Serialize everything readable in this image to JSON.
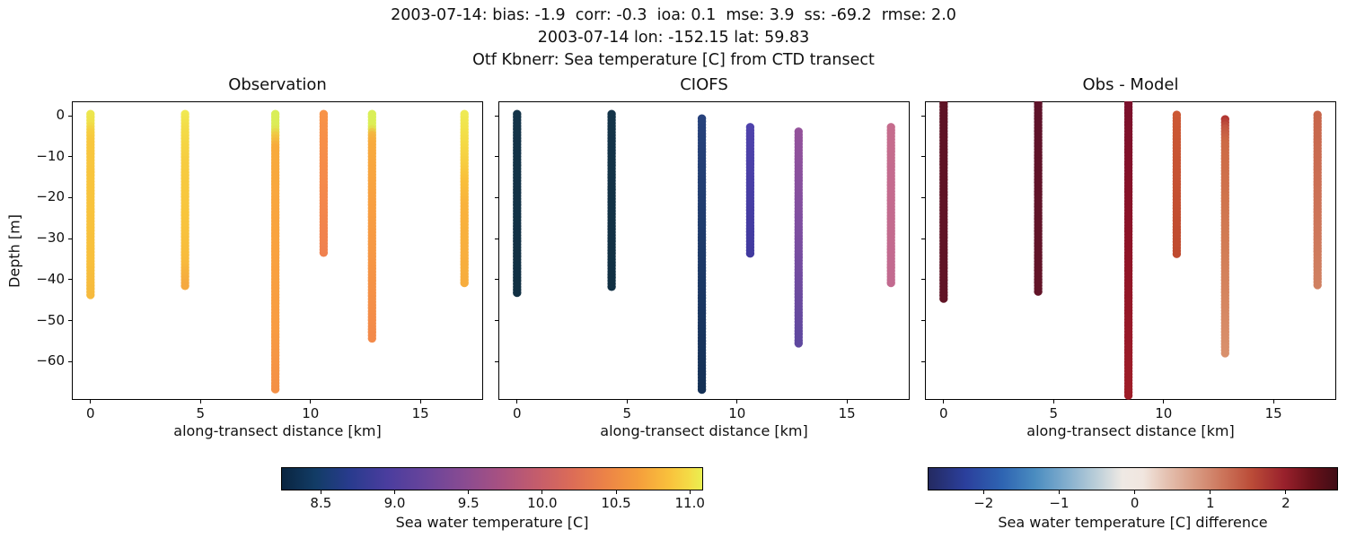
{
  "header": {
    "line1": "2003-07-14: bias: -1.9  corr: -0.3  ioa: 0.1  mse: 3.9  ss: -69.2  rmse: 2.0",
    "line2": "2003-07-14 lon: -152.15 lat: 59.83",
    "line3": "Otf Kbnerr: Sea temperature [C] from CTD transect"
  },
  "chart_data": {
    "type": "scatter",
    "description": "Three vertical-profile scatter panels (CTD transect casts) sharing depth axis, plus two horizontal colorbars",
    "axes": {
      "xlabel": "along-transect distance [km]",
      "ylabel": "Depth [m]",
      "xlim": [
        -0.85,
        17.85
      ],
      "ylim": [
        3.5,
        -69.3
      ],
      "xticks": [
        {
          "v": 0,
          "label": "0"
        },
        {
          "v": 5,
          "label": "5"
        },
        {
          "v": 10,
          "label": "10"
        },
        {
          "v": 15,
          "label": "15"
        }
      ],
      "yticks": [
        {
          "v": 0,
          "label": "0"
        },
        {
          "v": -10,
          "label": "−10"
        },
        {
          "v": -20,
          "label": "−20"
        },
        {
          "v": -30,
          "label": "−30"
        },
        {
          "v": -40,
          "label": "−40"
        },
        {
          "v": -50,
          "label": "−50"
        },
        {
          "v": -60,
          "label": "−60"
        }
      ]
    },
    "panels": [
      {
        "title": "Observation",
        "show_ytick_labels": true,
        "columns": [
          {
            "x_km": 0.0,
            "depth_top_m": 0.4,
            "depth_bottom_m": -43.7,
            "approx_value_range": [
              11.0,
              10.3
            ],
            "color_stops": [
              [
                0,
                "#ece74f"
              ],
              [
                0.05,
                "#f0e14b"
              ],
              [
                0.1,
                "#f6cf41"
              ],
              [
                0.16,
                "#f8c73e"
              ],
              [
                0.8,
                "#f8c03c"
              ],
              [
                1,
                "#f6ba3d"
              ]
            ]
          },
          {
            "x_km": 4.3,
            "depth_top_m": 0.4,
            "depth_bottom_m": -41.5,
            "approx_value_range": [
              11.0,
              10.0
            ],
            "color_stops": [
              [
                0,
                "#f0e952"
              ],
              [
                0.08,
                "#f3dd48"
              ],
              [
                0.3,
                "#f7cc3f"
              ],
              [
                0.6,
                "#f8c53d"
              ],
              [
                0.85,
                "#f8bc3c"
              ],
              [
                1,
                "#f5a940"
              ]
            ]
          },
          {
            "x_km": 8.4,
            "depth_top_m": 0.4,
            "depth_bottom_m": -66.7,
            "approx_value_range": [
              11.1,
              9.9
            ],
            "color_stops": [
              [
                0,
                "#d9ee59"
              ],
              [
                0.05,
                "#dcec56"
              ],
              [
                0.08,
                "#f0c845"
              ],
              [
                0.12,
                "#f8ab3c"
              ],
              [
                0.4,
                "#f9a43f"
              ],
              [
                0.78,
                "#f89c42"
              ],
              [
                1,
                "#f49046"
              ]
            ]
          },
          {
            "x_km": 10.6,
            "depth_top_m": 0.4,
            "depth_bottom_m": -33.4,
            "approx_value_range": [
              9.9,
              9.7
            ],
            "color_stops": [
              [
                0,
                "#f89348"
              ],
              [
                0.5,
                "#f58a4b"
              ],
              [
                1,
                "#f0814f"
              ]
            ]
          },
          {
            "x_km": 12.8,
            "depth_top_m": 0.4,
            "depth_bottom_m": -54.3,
            "approx_value_range": [
              11.1,
              9.8
            ],
            "color_stops": [
              [
                0,
                "#d9ef57"
              ],
              [
                0.06,
                "#dcee55"
              ],
              [
                0.09,
                "#f3b841"
              ],
              [
                0.13,
                "#f8ab3e"
              ],
              [
                0.4,
                "#f8a041"
              ],
              [
                1,
                "#f38a4a"
              ]
            ]
          },
          {
            "x_km": 17.0,
            "depth_top_m": 0.4,
            "depth_bottom_m": -40.8,
            "approx_value_range": [
              11.0,
              10.0
            ],
            "color_stops": [
              [
                0,
                "#eeea55"
              ],
              [
                0.1,
                "#f2e24a"
              ],
              [
                0.25,
                "#f6d343"
              ],
              [
                0.4,
                "#f9c03b"
              ],
              [
                0.55,
                "#f9b23d"
              ],
              [
                1,
                "#f7ad3e"
              ]
            ]
          }
        ]
      },
      {
        "title": "CIOFS",
        "show_ytick_labels": false,
        "columns": [
          {
            "x_km": 0.0,
            "depth_top_m": 0.4,
            "depth_bottom_m": -43.2,
            "approx_value_range": [
              8.35,
              8.35
            ],
            "color_stops": [
              [
                0,
                "#143449"
              ],
              [
                1,
                "#113043"
              ]
            ]
          },
          {
            "x_km": 4.3,
            "depth_top_m": 0.4,
            "depth_bottom_m": -41.7,
            "approx_value_range": [
              8.35,
              8.35
            ],
            "color_stops": [
              [
                0,
                "#143449"
              ],
              [
                1,
                "#113043"
              ]
            ]
          },
          {
            "x_km": 8.4,
            "depth_top_m": -0.7,
            "depth_bottom_m": -66.8,
            "approx_value_range": [
              8.65,
              8.45
            ],
            "color_stops": [
              [
                0,
                "#27427c"
              ],
              [
                0.5,
                "#1d3a69"
              ],
              [
                1,
                "#153156"
              ]
            ]
          },
          {
            "x_km": 10.6,
            "depth_top_m": -2.8,
            "depth_bottom_m": -33.6,
            "approx_value_range": [
              8.95,
              8.85
            ],
            "color_stops": [
              [
                0,
                "#4f43ac"
              ],
              [
                1,
                "#413a9f"
              ]
            ]
          },
          {
            "x_km": 12.8,
            "depth_top_m": -3.9,
            "depth_bottom_m": -55.5,
            "approx_value_range": [
              9.4,
              9.05
            ],
            "color_stops": [
              [
                0,
                "#94529b"
              ],
              [
                0.45,
                "#7e4ea0"
              ],
              [
                1,
                "#5f489f"
              ]
            ]
          },
          {
            "x_km": 17.0,
            "depth_top_m": -2.8,
            "depth_bottom_m": -40.8,
            "approx_value_range": [
              9.85,
              9.85
            ],
            "color_stops": [
              [
                0,
                "#c56c8d"
              ],
              [
                1,
                "#c26a8f"
              ]
            ]
          }
        ]
      },
      {
        "title": "Obs - Model",
        "show_ytick_labels": false,
        "columns": [
          {
            "x_km": 0.0,
            "depth_top_m": 2.9,
            "depth_bottom_m": -44.6,
            "approx_value_range": [
              2.6,
              2.6
            ],
            "color_stops": [
              [
                0,
                "#5e1325"
              ],
              [
                1,
                "#611426"
              ]
            ]
          },
          {
            "x_km": 4.3,
            "depth_top_m": 2.9,
            "depth_bottom_m": -42.9,
            "approx_value_range": [
              2.55,
              2.55
            ],
            "color_stops": [
              [
                0,
                "#5e132a"
              ],
              [
                1,
                "#621428"
              ]
            ]
          },
          {
            "x_km": 8.4,
            "depth_top_m": 3.6,
            "depth_bottom_m": -68.2,
            "approx_value_range": [
              2.35,
              2.1
            ],
            "color_stops": [
              [
                0,
                "#7a102c"
              ],
              [
                0.5,
                "#8e1327"
              ],
              [
                1,
                "#9e1d28"
              ]
            ]
          },
          {
            "x_km": 10.6,
            "depth_top_m": 0.2,
            "depth_bottom_m": -33.7,
            "approx_value_range": [
              1.4,
              1.55
            ],
            "color_stops": [
              [
                0,
                "#cc5834"
              ],
              [
                1,
                "#bf4a2f"
              ]
            ]
          },
          {
            "x_km": 12.8,
            "depth_top_m": -0.9,
            "depth_bottom_m": -57.9,
            "approx_value_range": [
              1.8,
              0.95
            ],
            "color_stops": [
              [
                0,
                "#b23732"
              ],
              [
                0.04,
                "#c25741"
              ],
              [
                0.1,
                "#cd6a45"
              ],
              [
                0.55,
                "#d27c55"
              ],
              [
                1,
                "#d9906c"
              ]
            ]
          },
          {
            "x_km": 17.0,
            "depth_top_m": 0.2,
            "depth_bottom_m": -41.3,
            "approx_value_range": [
              1.1,
              1.0
            ],
            "color_stops": [
              [
                0,
                "#c7654a"
              ],
              [
                0.5,
                "#cc7156"
              ],
              [
                1,
                "#d08061"
              ]
            ]
          }
        ]
      }
    ],
    "colorbars": [
      {
        "label": "Sea water temperature [C]",
        "vmin": 8.23,
        "vmax": 11.09,
        "ticks": [
          {
            "v": 8.5,
            "label": "8.5"
          },
          {
            "v": 9.0,
            "label": "9.0"
          },
          {
            "v": 9.5,
            "label": "9.5"
          },
          {
            "v": 10.0,
            "label": "10.0"
          },
          {
            "v": 10.5,
            "label": "10.5"
          },
          {
            "v": 11.0,
            "label": "11.0"
          }
        ],
        "gradient_stops": [
          [
            0,
            "#0a2540"
          ],
          [
            0.08,
            "#123c66"
          ],
          [
            0.16,
            "#283b8d"
          ],
          [
            0.25,
            "#4a3d9e"
          ],
          [
            0.34,
            "#68449b"
          ],
          [
            0.43,
            "#884b92"
          ],
          [
            0.52,
            "#a85181"
          ],
          [
            0.61,
            "#c55d6b"
          ],
          [
            0.69,
            "#dc6c57"
          ],
          [
            0.77,
            "#ec8347"
          ],
          [
            0.85,
            "#f59f3c"
          ],
          [
            0.92,
            "#f9c03c"
          ],
          [
            0.97,
            "#f4dc46"
          ],
          [
            1,
            "#e9ef51"
          ]
        ]
      },
      {
        "label": "Sea water temperature [C] difference",
        "vmin": -2.74,
        "vmax": 2.69,
        "ticks": [
          {
            "v": -2,
            "label": "−2"
          },
          {
            "v": -1,
            "label": "−1"
          },
          {
            "v": 0,
            "label": "0"
          },
          {
            "v": 1,
            "label": "1"
          },
          {
            "v": 2,
            "label": "2"
          }
        ],
        "gradient_stops": [
          [
            0,
            "#242a61"
          ],
          [
            0.09,
            "#2b3f9c"
          ],
          [
            0.18,
            "#2e64b2"
          ],
          [
            0.26,
            "#4a8cc0"
          ],
          [
            0.34,
            "#84afce"
          ],
          [
            0.42,
            "#c2d2da"
          ],
          [
            0.475,
            "#efe9e4"
          ],
          [
            0.525,
            "#f1e6df"
          ],
          [
            0.58,
            "#e5c3b3"
          ],
          [
            0.65,
            "#d99d85"
          ],
          [
            0.72,
            "#cc755b"
          ],
          [
            0.79,
            "#bb4c38"
          ],
          [
            0.87,
            "#99212c"
          ],
          [
            0.94,
            "#661019"
          ],
          [
            1,
            "#400d16"
          ]
        ]
      }
    ]
  }
}
